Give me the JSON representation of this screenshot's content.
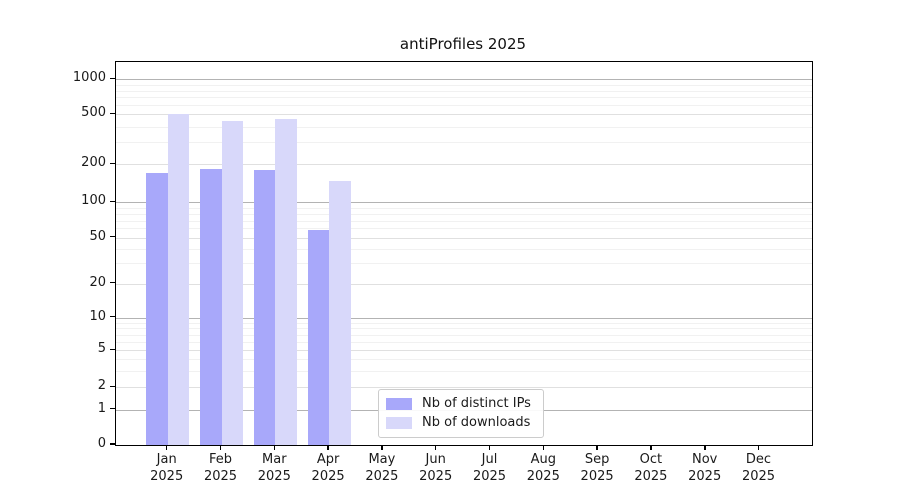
{
  "chart_data": {
    "type": "bar",
    "title": "antiProfiles 2025",
    "categories": [
      "Jan",
      "Feb",
      "Mar",
      "Apr",
      "May",
      "Jun",
      "Jul",
      "Aug",
      "Sep",
      "Oct",
      "Nov",
      "Dec"
    ],
    "category_year": "2025",
    "series": [
      {
        "name": "Nb of distinct IPs",
        "color": "#a8a8fa",
        "values": [
          172,
          185,
          180,
          58,
          null,
          null,
          null,
          null,
          null,
          null,
          null,
          null
        ]
      },
      {
        "name": "Nb of downloads",
        "color": "#d8d8fa",
        "values": [
          500,
          440,
          460,
          148,
          null,
          null,
          null,
          null,
          null,
          null,
          null,
          null
        ]
      }
    ],
    "y_ticks": [
      0,
      1,
      2,
      5,
      10,
      20,
      50,
      100,
      200,
      500,
      1000
    ],
    "ylim": [
      0,
      1400
    ],
    "yscale": "symlog",
    "grid": "horizontal, major + minor",
    "legend_position": "lower center",
    "grid_colors": {
      "decade": "#b3b3b3",
      "labeled": "#e0e0e0",
      "minor": "#f1f1f1"
    }
  }
}
